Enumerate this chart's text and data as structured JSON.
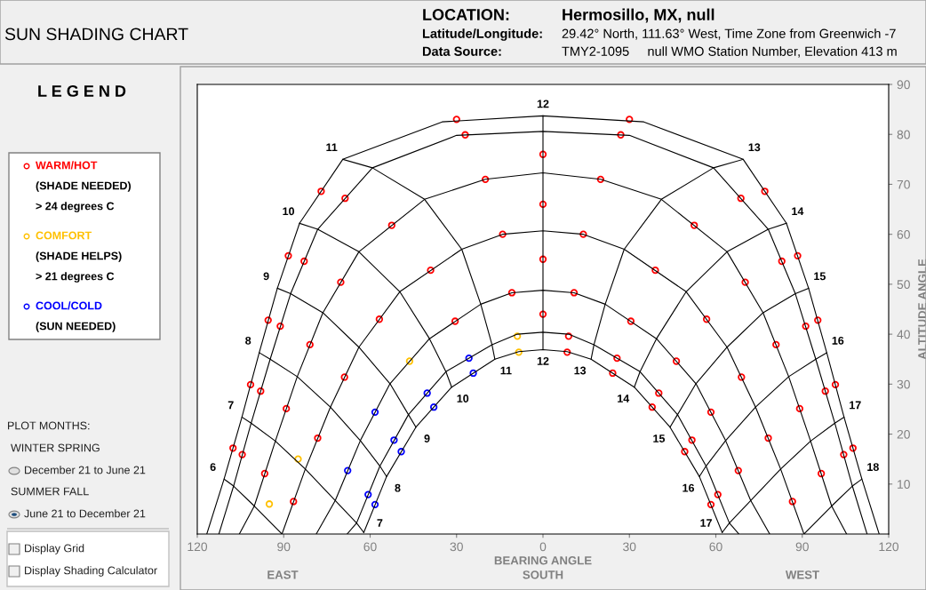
{
  "chart_data": {
    "type": "scatter",
    "title": "SUN SHADING CHART",
    "xlabel": "BEARING ANGLE",
    "ylabel": "ALTITUDE ANGLE",
    "xlim": [
      -120,
      120
    ],
    "ylim": [
      0,
      90
    ],
    "xticks": [
      {
        "value": -120,
        "label": "120"
      },
      {
        "value": -90,
        "label": "90"
      },
      {
        "value": -60,
        "label": "60"
      },
      {
        "value": -30,
        "label": "30"
      },
      0,
      30,
      60,
      90,
      120
    ],
    "yticks": [
      10,
      20,
      30,
      40,
      50,
      60,
      70,
      80,
      90
    ],
    "grid": false,
    "legend": "left",
    "annotations": [
      "LOCATION:",
      "Hermosillo, MX, null",
      "Latitude/Longitude:",
      "29.42° North, 111.63° West, Time Zone from Greenwich -7",
      "Data Source:",
      "TMY2-1095     null WMO Station Number, Elevation 413 m",
      "L E G E N D",
      "PLOT MONTHS:",
      "WINTER SPRING",
      "December 21 to June 21",
      "SUMMER FALL",
      "June 21 to December 21",
      "Display Grid",
      "Display Shading Calculator",
      "EAST",
      "SOUTH",
      "WEST",
      {
        "text": "6",
        "x": -110.7,
        "y": 11.0
      },
      {
        "text": "7",
        "x": -104.5,
        "y": 23.4
      },
      {
        "text": "8",
        "x": -98.5,
        "y": 36.3
      },
      {
        "text": "9",
        "x": -92.2,
        "y": 49.2
      },
      {
        "text": "10",
        "x": -84.5,
        "y": 62.2
      },
      {
        "text": "11",
        "x": -69.5,
        "y": 75.0
      },
      {
        "text": "12",
        "x": 0,
        "y": 83.7
      },
      {
        "text": "13",
        "x": 69.5,
        "y": 75.0
      },
      {
        "text": "14",
        "x": 84.5,
        "y": 62.2
      },
      {
        "text": "15",
        "x": 92.2,
        "y": 49.2
      },
      {
        "text": "16",
        "x": 98.5,
        "y": 36.3
      },
      {
        "text": "17",
        "x": 104.5,
        "y": 23.4
      },
      {
        "text": "18",
        "x": 110.7,
        "y": 11.0
      },
      {
        "text": "7",
        "x": -62.2,
        "y": 0.3
      },
      {
        "text": "8",
        "x": -54.3,
        "y": 11.5
      },
      {
        "text": "9",
        "x": -44.1,
        "y": 21.4
      },
      {
        "text": "10",
        "x": -31.7,
        "y": 29.4
      },
      {
        "text": "11",
        "x": -16.7,
        "y": 35.0
      },
      {
        "text": "12",
        "x": 0,
        "y": 36.9
      },
      {
        "text": "13",
        "x": 16.7,
        "y": 35.0
      },
      {
        "text": "14",
        "x": 31.7,
        "y": 29.4
      },
      {
        "text": "15",
        "x": 44.1,
        "y": 21.4
      },
      {
        "text": "16",
        "x": 54.3,
        "y": 11.5
      },
      {
        "text": "17",
        "x": 62.2,
        "y": 0.3
      }
    ],
    "series": [
      {
        "type": "line",
        "color": "#000000",
        "x": [
          -116.7,
          -110.7,
          -104.5,
          -98.5,
          -92.2,
          -84.5,
          -69.5,
          -35,
          0,
          35,
          69.5,
          84.5,
          92.2,
          98.5,
          104.5,
          110.7,
          116.7
        ],
        "values": [
          0,
          11.0,
          23.4,
          36.3,
          49.2,
          62.2,
          75.0,
          82.5,
          83.7,
          82.5,
          75.0,
          62.2,
          49.2,
          36.3,
          23.4,
          11.0,
          0
        ]
      },
      {
        "type": "line",
        "color": "#000000",
        "x": [
          -112.5,
          -107.4,
          -101.3,
          -94.7,
          -87.6,
          -78.2,
          -59.2,
          -30,
          0,
          30,
          59.2,
          78.2,
          87.6,
          94.7,
          101.3,
          107.4,
          112.5
        ],
        "values": [
          0,
          9.6,
          22.2,
          35.0,
          48.1,
          61.0,
          73.3,
          79.8,
          80.6,
          79.8,
          73.3,
          61.0,
          48.1,
          35.0,
          22.2,
          9.6,
          0
        ]
      },
      {
        "type": "line",
        "color": "#000000",
        "x": [
          -105.4,
          -100.2,
          -92.9,
          -85.3,
          -76.4,
          -63.9,
          -41.1,
          -20,
          0,
          20,
          41.1,
          63.9,
          76.4,
          85.3,
          92.9,
          100.2,
          105.4
        ],
        "values": [
          0,
          5.6,
          18.6,
          31.5,
          44.3,
          56.5,
          67.0,
          71.0,
          72.3,
          71.0,
          67.0,
          56.5,
          44.3,
          31.5,
          18.6,
          5.6,
          0
        ]
      },
      {
        "type": "line",
        "color": "#000000",
        "x": [
          -90.6,
          -82.5,
          -73.8,
          -63.9,
          -49.7,
          -28.2,
          -14,
          0,
          14,
          28.2,
          49.7,
          63.9,
          73.8,
          82.5,
          90.6
        ],
        "values": [
          0,
          13.0,
          25.4,
          37.4,
          48.5,
          57.0,
          60.0,
          60.7,
          60.0,
          57.0,
          48.5,
          37.4,
          25.4,
          13.0,
          0
        ]
      },
      {
        "type": "line",
        "color": "#000000",
        "x": [
          -78.7,
          -72.1,
          -63.4,
          -53.1,
          -39.4,
          -21.6,
          -10.8,
          0,
          10.8,
          21.6,
          39.4,
          53.1,
          63.4,
          72.1,
          78.7
        ],
        "values": [
          0,
          6.7,
          18.7,
          30.1,
          39.1,
          46.0,
          48.3,
          48.8,
          48.3,
          46.0,
          39.1,
          30.1,
          18.7,
          6.7,
          0
        ]
      },
      {
        "type": "line",
        "color": "#000000",
        "x": [
          -68,
          -64.7,
          -56.6,
          -46.7,
          -33.7,
          -17.7,
          -8.9,
          0,
          8.9,
          17.7,
          33.7,
          46.7,
          56.6,
          64.7,
          68
        ],
        "values": [
          0,
          2.2,
          13.6,
          23.9,
          32.5,
          37.9,
          40.0,
          40.4,
          40.0,
          37.9,
          32.5,
          23.9,
          13.6,
          2.2,
          0
        ]
      },
      {
        "type": "line",
        "color": "#000000",
        "x": [
          -62.2,
          -54.3,
          -44.1,
          -31.7,
          -16.7,
          -8.4,
          0,
          8.4,
          16.7,
          31.7,
          44.1,
          54.3,
          62.2
        ],
        "values": [
          0.3,
          11.5,
          21.4,
          29.4,
          35.0,
          36.5,
          36.9,
          36.5,
          35.0,
          29.4,
          21.4,
          11.5,
          0.3
        ]
      },
      {
        "type": "line",
        "color": "#000000",
        "x": [
          -110.7,
          -107.4,
          -100.2,
          -90.6
        ],
        "values": [
          11.0,
          9.6,
          5.6,
          0
        ]
      },
      {
        "type": "line",
        "color": "#000000",
        "x": [
          -104.5,
          -101.3,
          -92.9,
          -82.5,
          -72.1,
          -64.7,
          -62.2
        ],
        "values": [
          23.4,
          22.2,
          18.6,
          13.0,
          6.7,
          2.2,
          0.3
        ]
      },
      {
        "type": "line",
        "color": "#000000",
        "x": [
          -98.5,
          -94.7,
          -85.3,
          -73.8,
          -63.4,
          -56.6,
          -54.3
        ],
        "values": [
          36.3,
          35.0,
          31.5,
          25.4,
          18.7,
          13.6,
          11.5
        ]
      },
      {
        "type": "line",
        "color": "#000000",
        "x": [
          -92.2,
          -87.6,
          -76.4,
          -63.9,
          -53.1,
          -46.7,
          -44.1
        ],
        "values": [
          49.2,
          48.1,
          44.3,
          37.4,
          30.1,
          23.9,
          21.4
        ]
      },
      {
        "type": "line",
        "color": "#000000",
        "x": [
          -84.5,
          -78.2,
          -63.9,
          -49.7,
          -39.4,
          -33.7,
          -31.7
        ],
        "values": [
          62.2,
          61.0,
          56.5,
          48.5,
          39.1,
          32.5,
          29.4
        ]
      },
      {
        "type": "line",
        "color": "#000000",
        "x": [
          -69.5,
          -59.2,
          -41.1,
          -28.2,
          -21.6,
          -17.7,
          -16.7
        ],
        "values": [
          75.0,
          73.3,
          67.0,
          57.0,
          46.0,
          37.9,
          35.0
        ]
      },
      {
        "type": "line",
        "color": "#000000",
        "x": [
          0,
          0,
          0,
          0,
          0,
          0,
          0
        ],
        "values": [
          83.7,
          80.6,
          72.3,
          60.7,
          48.8,
          40.4,
          36.9
        ]
      },
      {
        "type": "line",
        "color": "#000000",
        "x": [
          69.5,
          59.2,
          41.1,
          28.2,
          21.6,
          17.7,
          16.7
        ],
        "values": [
          75.0,
          73.3,
          67.0,
          57.0,
          46.0,
          37.9,
          35.0
        ]
      },
      {
        "type": "line",
        "color": "#000000",
        "x": [
          84.5,
          78.2,
          63.9,
          49.7,
          39.4,
          33.7,
          31.7
        ],
        "values": [
          62.2,
          61.0,
          56.5,
          48.5,
          39.1,
          32.5,
          29.4
        ]
      },
      {
        "type": "line",
        "color": "#000000",
        "x": [
          92.2,
          87.6,
          76.4,
          63.9,
          53.1,
          46.7,
          44.1
        ],
        "values": [
          49.2,
          48.1,
          44.3,
          37.4,
          30.1,
          23.9,
          21.4
        ]
      },
      {
        "type": "line",
        "color": "#000000",
        "x": [
          98.5,
          94.7,
          85.3,
          73.8,
          63.4,
          56.6,
          54.3
        ],
        "values": [
          36.3,
          35.0,
          31.5,
          25.4,
          18.7,
          13.6,
          11.5
        ]
      },
      {
        "type": "line",
        "color": "#000000",
        "x": [
          104.5,
          101.3,
          92.9,
          82.5,
          72.1,
          64.7,
          62.2
        ],
        "values": [
          23.4,
          22.2,
          18.6,
          13.0,
          6.7,
          2.2,
          0.3
        ]
      },
      {
        "type": "line",
        "color": "#000000",
        "x": [
          110.7,
          107.4,
          100.2,
          90.6
        ],
        "values": [
          11.0,
          9.6,
          5.6,
          0
        ]
      },
      {
        "name": "WARM/HOT\n(SHADE NEEDED)\n> 24 degrees C",
        "color": "#ff0000",
        "marker": "circle",
        "x": [
          -107.6,
          -101.5,
          -95.4,
          -88.4,
          -77.0,
          -30.0,
          -104.4,
          -98.0,
          -91.2,
          -82.9,
          -68.7,
          -27.0,
          -96.6,
          -89.1,
          -80.9,
          -70.2,
          -52.5,
          -20.0,
          -86.6,
          -78.2,
          -68.9,
          -56.8,
          -39.0,
          -14.0,
          -30.5,
          -10.8,
          0,
          0,
          0,
          0,
          107.6,
          101.5,
          95.4,
          88.4,
          77.0,
          30.0,
          104.4,
          98.0,
          91.2,
          82.9,
          68.7,
          27.0,
          96.6,
          89.1,
          80.9,
          70.2,
          52.5,
          20.0,
          86.6,
          78.2,
          68.9,
          56.8,
          39.0,
          14.0,
          10.8,
          30.5,
          46.3,
          58.3,
          67.8,
          8.9,
          25.7,
          40.2,
          51.7,
          60.7,
          8.4,
          24.2,
          37.9,
          49.2,
          58.3
        ],
        "values": [
          17.2,
          29.9,
          42.8,
          55.7,
          68.6,
          83.0,
          15.9,
          28.6,
          41.6,
          54.6,
          67.2,
          79.9,
          12.1,
          25.1,
          37.9,
          50.4,
          61.8,
          71.0,
          6.5,
          19.2,
          31.4,
          43.0,
          52.8,
          60.0,
          42.6,
          48.3,
          76,
          66,
          55,
          44,
          17.2,
          29.9,
          42.8,
          55.7,
          68.6,
          83.0,
          15.9,
          28.6,
          41.6,
          54.6,
          67.2,
          79.9,
          12.1,
          25.1,
          37.9,
          50.4,
          61.8,
          71.0,
          6.5,
          19.2,
          31.4,
          43.0,
          52.8,
          60.0,
          48.3,
          42.6,
          34.6,
          24.4,
          12.7,
          39.6,
          35.2,
          28.2,
          18.8,
          7.9,
          36.4,
          32.2,
          25.4,
          16.5,
          5.9
        ]
      },
      {
        "name": "COMFORT\n(SHADE HELPS)\n> 21 degrees C",
        "color": "#ffc000",
        "marker": "circle",
        "x": [
          -46.3,
          -8.9,
          -8.4,
          -95,
          -85
        ],
        "values": [
          34.6,
          39.6,
          36.4,
          6,
          15
        ]
      },
      {
        "name": "COOL/COLD\n(SUN NEEDED)",
        "color": "#0000ff",
        "marker": "circle",
        "x": [
          -67.8,
          -58.3,
          -60.7,
          -51.7,
          -40.2,
          -25.7,
          -58.3,
          -49.2,
          -37.9,
          -24.2
        ],
        "values": [
          12.7,
          24.4,
          7.9,
          18.8,
          28.2,
          35.2,
          5.9,
          16.5,
          25.4,
          32.2
        ]
      }
    ]
  }
}
